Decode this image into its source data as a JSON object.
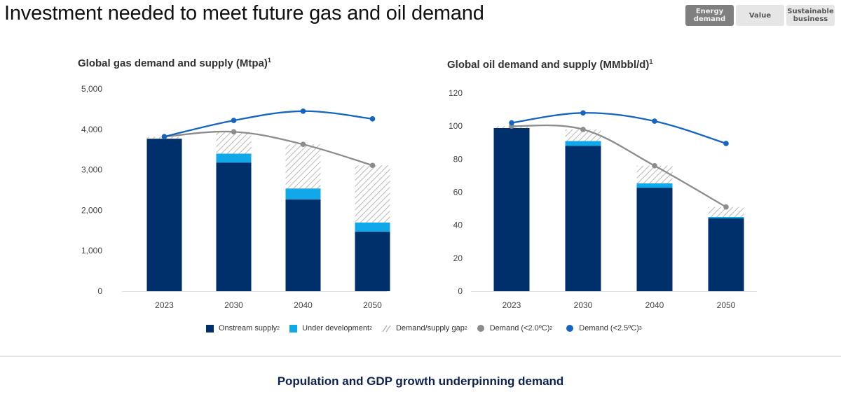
{
  "page": {
    "title": "Investment needed to meet future gas and oil demand",
    "footer": "Population and GDP growth underpinning demand"
  },
  "tabs": [
    {
      "label": "Energy demand",
      "active": true
    },
    {
      "label": "Value",
      "active": false
    },
    {
      "label": "Sustainable business",
      "active": false
    }
  ],
  "legend": [
    {
      "label": "Onstream supply",
      "sup": "2",
      "kind": "onstream"
    },
    {
      "label": "Under development",
      "sup": "2",
      "kind": "under_development"
    },
    {
      "label": "Demand/supply gap",
      "sup": "2",
      "kind": "gap"
    },
    {
      "label": "Demand (<2.0ºC)",
      "sup": "2",
      "kind": "demand_2_0"
    },
    {
      "label": "Demand (<2.5ºC)",
      "sup": "3",
      "kind": "demand_2_5"
    }
  ],
  "colors": {
    "onstream": "#00306b",
    "under_development": "#10a8e8",
    "gap_hatch": "#b8b8b8",
    "demand_2_0": "#8c8c8c",
    "demand_2_5": "#1565c0",
    "axis": "#e0e0e0"
  },
  "chart_data": [
    {
      "type": "bar",
      "stacked": true,
      "title": "Global gas demand and supply (Mtpa)",
      "title_sup": "1",
      "categories": [
        "2023",
        "2030",
        "2040",
        "2050"
      ],
      "ylim": [
        0,
        5000
      ],
      "yticks": [
        0,
        1000,
        2000,
        3000,
        4000,
        5000
      ],
      "ytick_labels": [
        "0",
        "1,000",
        "2,000",
        "3,000",
        "4,000",
        "5,000"
      ],
      "grid": false,
      "legend_position": "bottom",
      "series": [
        {
          "name": "Onstream supply",
          "kind": "onstream",
          "values": [
            3770,
            3180,
            2270,
            1470
          ]
        },
        {
          "name": "Under development",
          "kind": "under_development",
          "values": [
            0,
            220,
            270,
            230
          ]
        },
        {
          "name": "Demand/supply gap",
          "kind": "gap",
          "values": [
            50,
            540,
            1090,
            1410
          ]
        }
      ],
      "lines": [
        {
          "name": "Demand (<2.0ºC)",
          "kind": "demand_2_0",
          "values": [
            3820,
            3940,
            3630,
            3110
          ]
        },
        {
          "name": "Demand (<2.5ºC)",
          "kind": "demand_2_5",
          "values": [
            3820,
            4220,
            4450,
            4260
          ]
        }
      ]
    },
    {
      "type": "bar",
      "stacked": true,
      "title": "Global oil demand and supply (MMbbl/d)",
      "title_sup": "1",
      "categories": [
        "2023",
        "2030",
        "2040",
        "2050"
      ],
      "ylim": [
        0,
        120
      ],
      "yticks": [
        0,
        20,
        40,
        60,
        80,
        100,
        120
      ],
      "ytick_labels": [
        "0",
        "20",
        "40",
        "60",
        "80",
        "100",
        "120"
      ],
      "grid": false,
      "legend_position": "bottom",
      "series": [
        {
          "name": "Onstream supply",
          "kind": "onstream",
          "values": [
            98.8,
            88,
            62.7,
            44.1
          ]
        },
        {
          "name": "Under development",
          "kind": "under_development",
          "values": [
            0,
            3,
            2.6,
            0.9
          ]
        },
        {
          "name": "Demand/supply gap",
          "kind": "gap",
          "values": [
            1.2,
            7,
            10.7,
            6
          ]
        }
      ],
      "lines": [
        {
          "name": "Demand (<2.0ºC)",
          "kind": "demand_2_0",
          "values": [
            100,
            98,
            76,
            51
          ]
        },
        {
          "name": "Demand (<2.5ºC)",
          "kind": "demand_2_5",
          "values": [
            102,
            108,
            103,
            89.5
          ]
        }
      ]
    }
  ]
}
